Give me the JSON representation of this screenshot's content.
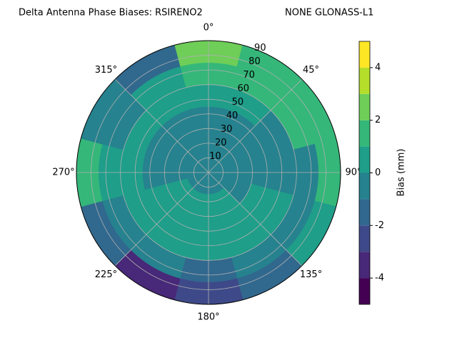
{
  "chart_data": {
    "type": "polar_contour",
    "title": "Delta Antenna Phase Biases: RSIRENO2",
    "subtitle": "NONE GLONASS-L1",
    "colorbar_label": "Bias (mm)",
    "theta": [
      0,
      30,
      60,
      90,
      120,
      150,
      180,
      210,
      240,
      270,
      300,
      330
    ],
    "r": [
      7.5,
      22.5,
      37.5,
      52.5,
      67.5,
      82.5
    ],
    "values": [
      [
        -0.5,
        -0.5,
        -0.5,
        0.5,
        1.5,
        2.5
      ],
      [
        -0.5,
        -0.5,
        -0.5,
        0.5,
        1.5,
        1.5
      ],
      [
        -0.5,
        -0.5,
        -0.5,
        -0.5,
        1.5,
        1.5
      ],
      [
        -0.5,
        -0.5,
        -0.5,
        -0.5,
        -0.5,
        1.5
      ],
      [
        -0.5,
        -0.5,
        0.5,
        0.5,
        -0.5,
        0.5
      ],
      [
        -0.5,
        0.5,
        0.5,
        0.5,
        -0.5,
        -1.5
      ],
      [
        -0.5,
        0.5,
        0.5,
        0.5,
        -1.5,
        -2.5
      ],
      [
        -0.5,
        0.5,
        0.5,
        0.5,
        -0.5,
        -3.5
      ],
      [
        -0.5,
        0.5,
        0.5,
        0.5,
        -0.5,
        -1.5
      ],
      [
        -0.5,
        -0.5,
        -0.5,
        0.5,
        0.5,
        1.5
      ],
      [
        -0.5,
        -0.5,
        -0.5,
        0.5,
        -0.5,
        -0.5
      ],
      [
        -0.5,
        -0.5,
        -0.5,
        0.5,
        0.5,
        -1.5
      ]
    ],
    "rlim": [
      0,
      90
    ],
    "rticks": [
      10,
      20,
      30,
      40,
      50,
      60,
      70,
      80,
      90
    ],
    "thetaticks": [
      {
        "value": 0,
        "label": "0°"
      },
      {
        "value": 45,
        "label": "45°"
      },
      {
        "value": 90,
        "label": "90°"
      },
      {
        "value": 135,
        "label": "135°"
      },
      {
        "value": 180,
        "label": "180°"
      },
      {
        "value": 225,
        "label": "225°"
      },
      {
        "value": 270,
        "label": "270°"
      },
      {
        "value": 315,
        "label": "315°"
      }
    ],
    "levels": [
      -5,
      -4,
      -3,
      -2,
      -1,
      0,
      1,
      2,
      3,
      4,
      5
    ],
    "colors": [
      "#440154",
      "#482878",
      "#3e4989",
      "#31688e",
      "#26828e",
      "#1f9e89",
      "#35b779",
      "#6ece58",
      "#b5de2b",
      "#fde725"
    ],
    "clim": [
      -5,
      5
    ],
    "cticks": [
      -4,
      -2,
      0,
      2,
      4
    ],
    "grid": true
  }
}
